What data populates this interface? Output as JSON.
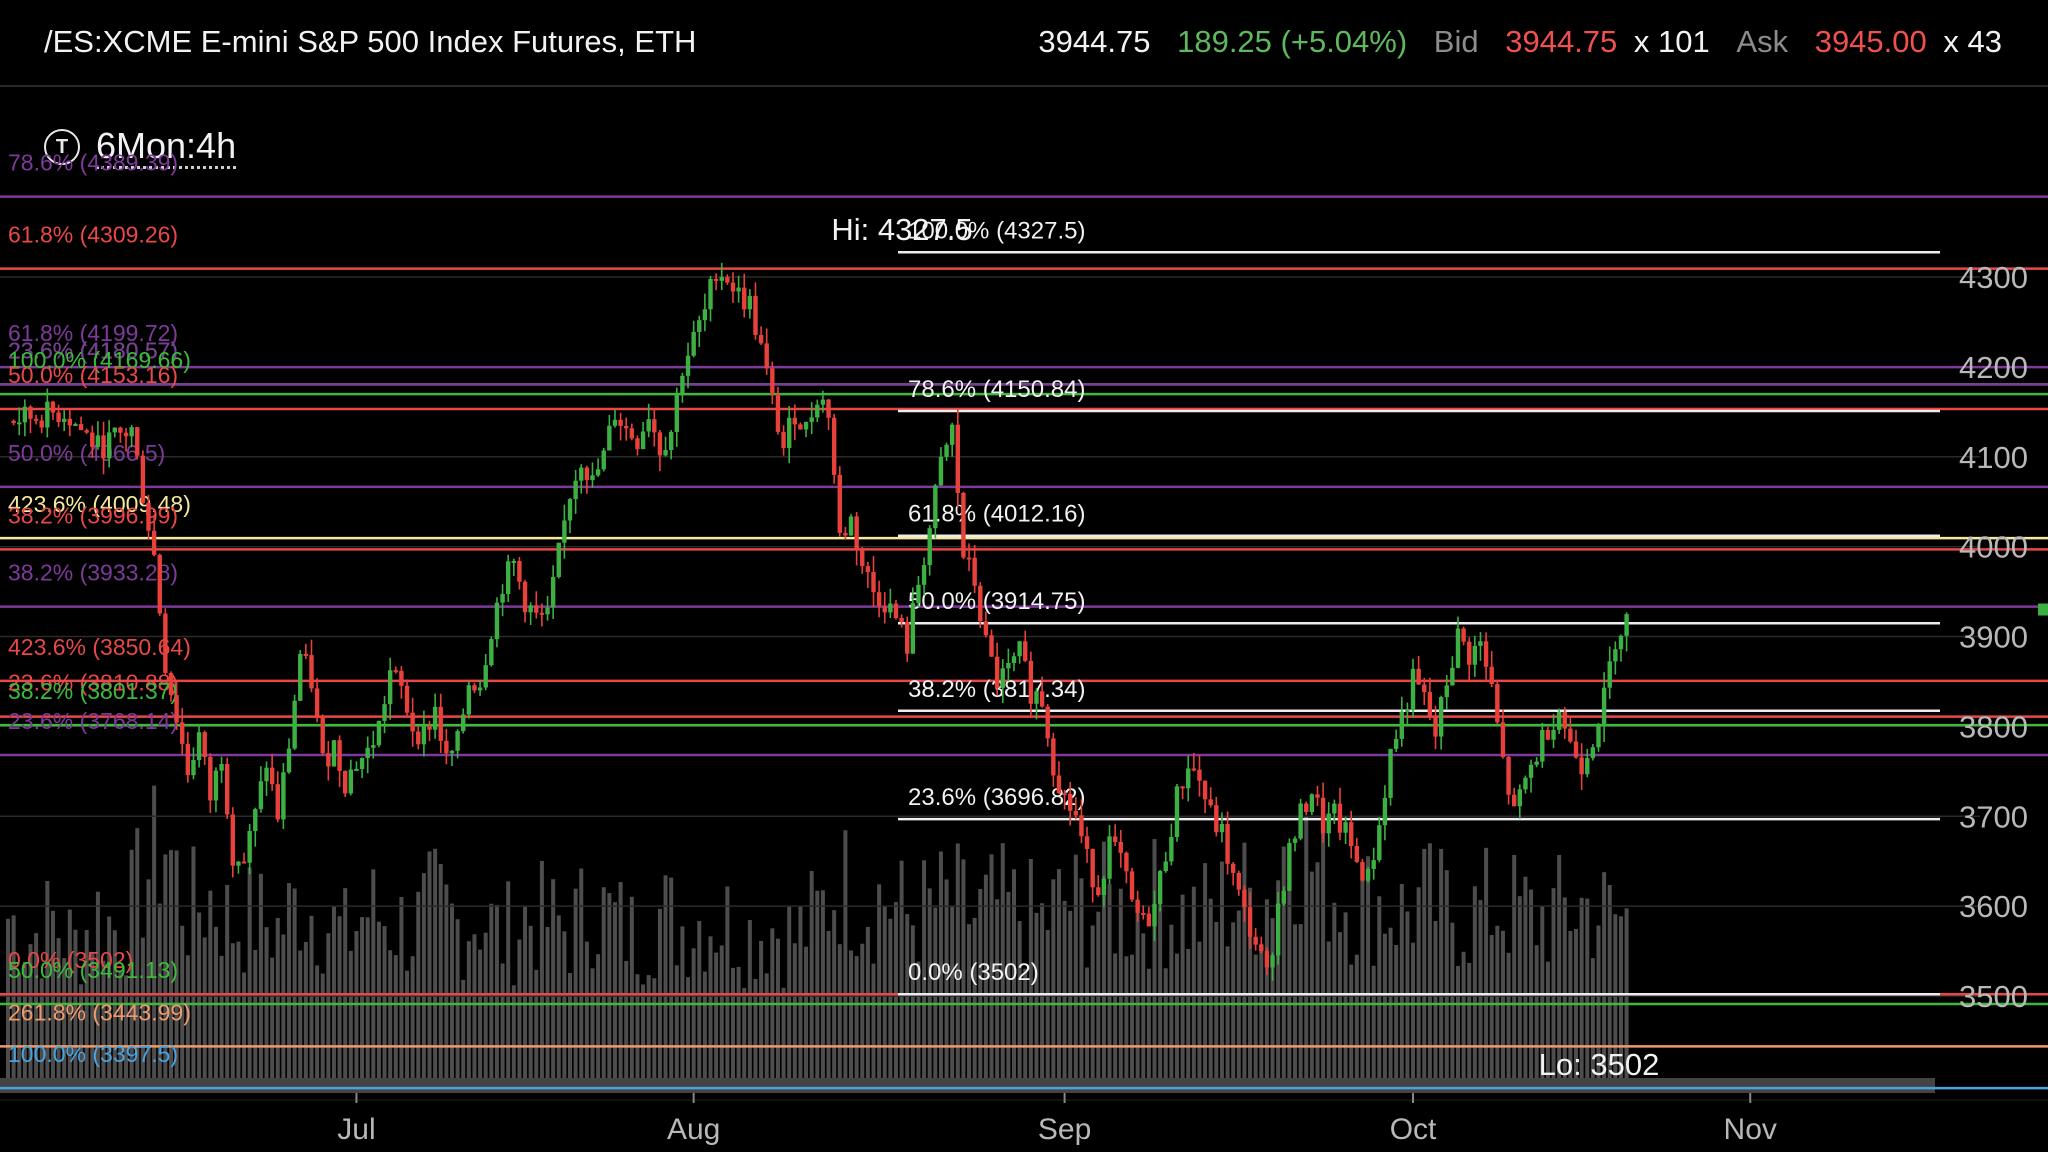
{
  "header": {
    "symbol": "/ES:XCME E-mini S&P 500 Index Futures, ETH",
    "last": "3944.75",
    "change": "189.25 (+5.04%)",
    "bid_label": "Bid",
    "bid": "3944.75",
    "bid_size": "x 101",
    "ask_label": "Ask",
    "ask": "3945.00",
    "ask_size": "x 43"
  },
  "timeframe": {
    "icon": "T",
    "label": "6Mon:4h"
  },
  "chart_data": {
    "type": "candlestick",
    "y_ticks": [
      3500,
      3600,
      3700,
      3800,
      3900,
      4000,
      4100,
      4200,
      4300
    ],
    "y_range": [
      3396,
      4535
    ],
    "x_labels": [
      {
        "label": "Jul",
        "x": 17
      },
      {
        "label": "Aug",
        "x": 47
      },
      {
        "label": "Sep",
        "x": 80
      },
      {
        "label": "Oct",
        "x": 111
      },
      {
        "label": "Nov",
        "x": 141
      }
    ],
    "x_range": [
      -14,
      165
    ],
    "hi_label": "Hi: 4327.5",
    "lo_label": "Lo: 3502",
    "price_path": [
      [
        -14,
        4140
      ],
      [
        -9,
        4150
      ],
      [
        -6,
        4110
      ],
      [
        -3,
        4130
      ],
      [
        -2,
        4060
      ],
      [
        -1,
        3990
      ],
      [
        0,
        3870
      ],
      [
        2,
        3750
      ],
      [
        3,
        3790
      ],
      [
        4,
        3720
      ],
      [
        5,
        3770
      ],
      [
        6,
        3660
      ],
      [
        7,
        3650
      ],
      [
        8,
        3700
      ],
      [
        9,
        3760
      ],
      [
        10,
        3700
      ],
      [
        11,
        3780
      ],
      [
        12,
        3880
      ],
      [
        13,
        3850
      ],
      [
        14,
        3760
      ],
      [
        15,
        3780
      ],
      [
        16,
        3740
      ],
      [
        17,
        3760
      ],
      [
        18,
        3770
      ],
      [
        19,
        3800
      ],
      [
        20,
        3860
      ],
      [
        21,
        3840
      ],
      [
        22,
        3800
      ],
      [
        23,
        3790
      ],
      [
        24,
        3820
      ],
      [
        25,
        3760
      ],
      [
        26,
        3780
      ],
      [
        27,
        3850
      ],
      [
        28,
        3850
      ],
      [
        29,
        3910
      ],
      [
        30,
        3960
      ],
      [
        31,
        3980
      ],
      [
        32,
        3940
      ],
      [
        33,
        3920
      ],
      [
        34,
        3920
      ],
      [
        35,
        3990
      ],
      [
        36,
        4060
      ],
      [
        37,
        4100
      ],
      [
        38,
        4070
      ],
      [
        39,
        4100
      ],
      [
        40,
        4150
      ],
      [
        41,
        4130
      ],
      [
        42,
        4120
      ],
      [
        43,
        4150
      ],
      [
        44,
        4110
      ],
      [
        45,
        4130
      ],
      [
        46,
        4200
      ],
      [
        47,
        4230
      ],
      [
        48,
        4260
      ],
      [
        49,
        4310
      ],
      [
        50,
        4300
      ],
      [
        51,
        4280
      ],
      [
        52,
        4270
      ],
      [
        53,
        4220
      ],
      [
        54,
        4160
      ],
      [
        55,
        4110
      ],
      [
        56,
        4150
      ],
      [
        57,
        4130
      ],
      [
        58,
        4170
      ],
      [
        59,
        4150
      ],
      [
        60,
        4010
      ],
      [
        61,
        4030
      ],
      [
        62,
        3980
      ],
      [
        63,
        3950
      ],
      [
        64,
        3940
      ],
      [
        65,
        3920
      ],
      [
        66,
        3890
      ],
      [
        67,
        3960
      ],
      [
        68,
        4020
      ],
      [
        69,
        4090
      ],
      [
        70,
        4130
      ],
      [
        71,
        3990
      ],
      [
        72,
        3960
      ],
      [
        73,
        3890
      ],
      [
        74,
        3850
      ],
      [
        75,
        3860
      ],
      [
        76,
        3880
      ],
      [
        77,
        3840
      ],
      [
        78,
        3830
      ],
      [
        79,
        3760
      ],
      [
        80,
        3720
      ],
      [
        81,
        3700
      ],
      [
        82,
        3650
      ],
      [
        83,
        3620
      ],
      [
        84,
        3670
      ],
      [
        85,
        3650
      ],
      [
        86,
        3600
      ],
      [
        87,
        3580
      ],
      [
        88,
        3600
      ],
      [
        89,
        3660
      ],
      [
        90,
        3720
      ],
      [
        91,
        3760
      ],
      [
        92,
        3740
      ],
      [
        93,
        3700
      ],
      [
        94,
        3680
      ],
      [
        95,
        3630
      ],
      [
        96,
        3590
      ],
      [
        97,
        3560
      ],
      [
        98,
        3520
      ],
      [
        99,
        3600
      ],
      [
        100,
        3660
      ],
      [
        101,
        3700
      ],
      [
        102,
        3730
      ],
      [
        103,
        3690
      ],
      [
        104,
        3700
      ],
      [
        105,
        3680
      ],
      [
        106,
        3650
      ],
      [
        107,
        3630
      ],
      [
        108,
        3690
      ],
      [
        109,
        3770
      ],
      [
        110,
        3810
      ],
      [
        111,
        3850
      ],
      [
        112,
        3830
      ],
      [
        113,
        3790
      ],
      [
        114,
        3850
      ],
      [
        115,
        3900
      ],
      [
        116,
        3880
      ],
      [
        117,
        3890
      ],
      [
        118,
        3840
      ],
      [
        119,
        3760
      ],
      [
        120,
        3700
      ],
      [
        121,
        3740
      ],
      [
        122,
        3770
      ],
      [
        123,
        3800
      ],
      [
        124,
        3820
      ],
      [
        125,
        3780
      ],
      [
        126,
        3760
      ],
      [
        127,
        3790
      ],
      [
        128,
        3830
      ],
      [
        129,
        3900
      ],
      [
        130,
        3920
      ]
    ],
    "volume_scale": [
      0,
      1000
    ],
    "volume_bars": [
      [
        -14,
        430
      ],
      [
        -12,
        380
      ],
      [
        -10,
        420
      ],
      [
        -8,
        360
      ],
      [
        -6,
        440
      ],
      [
        -4,
        390
      ],
      [
        -2,
        520
      ],
      [
        0,
        620
      ],
      [
        2,
        440
      ],
      [
        4,
        480
      ],
      [
        6,
        410
      ],
      [
        8,
        430
      ],
      [
        10,
        400
      ],
      [
        12,
        470
      ],
      [
        14,
        430
      ],
      [
        16,
        380
      ],
      [
        18,
        450
      ],
      [
        20,
        420
      ],
      [
        22,
        400
      ],
      [
        24,
        460
      ],
      [
        26,
        410
      ],
      [
        28,
        440
      ],
      [
        30,
        380
      ],
      [
        32,
        430
      ],
      [
        34,
        420
      ],
      [
        36,
        400
      ],
      [
        38,
        460
      ],
      [
        40,
        420
      ],
      [
        42,
        380
      ],
      [
        44,
        440
      ],
      [
        46,
        410
      ],
      [
        48,
        430
      ],
      [
        50,
        420
      ],
      [
        52,
        390
      ],
      [
        54,
        410
      ],
      [
        56,
        380
      ],
      [
        58,
        430
      ],
      [
        60,
        520
      ],
      [
        62,
        470
      ],
      [
        64,
        480
      ],
      [
        66,
        430
      ],
      [
        68,
        450
      ],
      [
        70,
        470
      ],
      [
        72,
        430
      ],
      [
        74,
        460
      ],
      [
        76,
        440
      ],
      [
        78,
        420
      ],
      [
        80,
        470
      ],
      [
        82,
        450
      ],
      [
        84,
        460
      ],
      [
        86,
        430
      ],
      [
        88,
        470
      ],
      [
        90,
        440
      ],
      [
        92,
        430
      ],
      [
        94,
        460
      ],
      [
        96,
        480
      ],
      [
        98,
        480
      ],
      [
        100,
        640
      ],
      [
        102,
        560
      ],
      [
        104,
        500
      ],
      [
        106,
        460
      ],
      [
        108,
        470
      ],
      [
        110,
        440
      ],
      [
        112,
        470
      ],
      [
        114,
        450
      ],
      [
        116,
        430
      ],
      [
        118,
        460
      ],
      [
        120,
        450
      ],
      [
        122,
        430
      ],
      [
        124,
        440
      ],
      [
        126,
        460
      ],
      [
        128,
        440
      ],
      [
        130,
        420
      ]
    ],
    "fib_levels_right": [
      {
        "label": "100.0% (4327.5)",
        "price": 4327.5
      },
      {
        "label": "78.6% (4150.84)",
        "price": 4150.84
      },
      {
        "label": "61.8% (4012.16)",
        "price": 4012.16
      },
      {
        "label": "50.0% (3914.75)",
        "price": 3914.75
      },
      {
        "label": "38.2% (3817.34)",
        "price": 3817.34
      },
      {
        "label": "23.6% (3696.82)",
        "price": 3696.82
      },
      {
        "label": "0.0% (3502)",
        "price": 3502
      }
    ],
    "fib_levels_left": [
      {
        "label": "78.6% (4389.39)",
        "price": 4389.39,
        "color": "#7e3a9a",
        "label_offset": -26
      },
      {
        "label": "61.8% (4309.26)",
        "price": 4309.26,
        "color": "#e84848",
        "label_offset": -26
      },
      {
        "label": "61.8% (4199.72)",
        "price": 4199.72,
        "color": "#7e3a9a",
        "label_offset": -26
      },
      {
        "label": "23.6% (4180.57)",
        "price": 4180.57,
        "color": "#3cba3c",
        "label_offset": -26
      },
      {
        "label": "23.6% (4180.57)",
        "price": 4180.57,
        "color": "#7e3a9a",
        "label_offset": -26
      },
      {
        "label": "100.0% (4169.66)",
        "price": 4169.66,
        "color": "#3cba3c",
        "label_offset": -26
      },
      {
        "label": "50.0% (4153.16)",
        "price": 4153.16,
        "color": "#e84848",
        "label_offset": -26
      },
      {
        "label": "50.0% (4066.5)",
        "price": 4066.5,
        "color": "#7e3a9a",
        "label_offset": -26
      },
      {
        "label": "423.6% (4009.48)",
        "price": 4009.48,
        "color": "#f5e99c",
        "label_offset": -26
      },
      {
        "label": "38.2% (3996.99)",
        "price": 3996.99,
        "color": "#e84848",
        "label_offset": -26
      },
      {
        "label": "38.2% (3933.28)",
        "price": 3933.28,
        "color": "#7e3a9a",
        "label_offset": -26
      },
      {
        "label": "423.6% (3850.64)",
        "price": 3850.64,
        "color": "#e84848",
        "label_offset": -26
      },
      {
        "label": "23.6% (3810.88)",
        "price": 3810.88,
        "color": "#e84848",
        "label_offset": -26
      },
      {
        "label": "38.2% (3801.37)",
        "price": 3801.37,
        "color": "#3cba3c",
        "label_offset": -26
      },
      {
        "label": "23.6% (3768.14)",
        "price": 3768.14,
        "color": "#7e3a9a",
        "label_offset": -26
      },
      {
        "label": "0.0% (3502)",
        "price": 3502,
        "color": "#e84848",
        "label_offset": -26
      },
      {
        "label": "50.0% (3491.13)",
        "price": 3491.13,
        "color": "#3cba3c",
        "label_offset": -26
      },
      {
        "label": "261.8% (3443.99)",
        "price": 3443.99,
        "color": "#f09a6a",
        "label_offset": -26
      },
      {
        "label": "100.0% (3397.5)",
        "price": 3397.5,
        "color": "#4aa3df",
        "label_offset": -26
      }
    ],
    "last_price": 3930
  }
}
